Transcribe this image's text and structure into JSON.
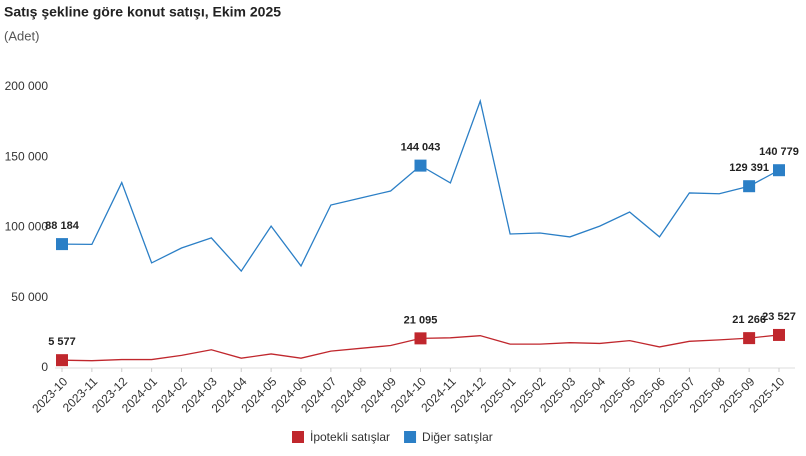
{
  "chart_data": {
    "type": "line",
    "title": "Satış şekline göre konut satışı, Ekim 2025",
    "subtitle": "(Adet)",
    "categories": [
      "2023-10",
      "2023-11",
      "2023-12",
      "2024-01",
      "2024-02",
      "2024-03",
      "2024-04",
      "2024-05",
      "2024-06",
      "2024-07",
      "2024-08",
      "2024-09",
      "2024-10",
      "2024-11",
      "2024-12",
      "2025-01",
      "2025-02",
      "2025-03",
      "2025-04",
      "2025-05",
      "2025-06",
      "2025-07",
      "2025-08",
      "2025-09",
      "2025-10"
    ],
    "series": [
      {
        "name": "İpotekli satışlar",
        "color": "#c0272d",
        "values": [
          5577,
          5200,
          6000,
          6000,
          9000,
          13000,
          7000,
          10000,
          7000,
          12000,
          14000,
          16000,
          21095,
          21500,
          23000,
          17000,
          17000,
          18000,
          17500,
          19500,
          15000,
          19000,
          20000,
          21266,
          23527
        ],
        "value_labels": [
          "5 577",
          null,
          null,
          null,
          null,
          null,
          null,
          null,
          null,
          null,
          null,
          null,
          "21 095",
          null,
          null,
          null,
          null,
          null,
          null,
          null,
          null,
          null,
          null,
          "21 266",
          "23 527"
        ]
      },
      {
        "name": "Diğer satışlar",
        "color": "#2b7fc6",
        "values": [
          88184,
          88000,
          132000,
          74800,
          85400,
          92600,
          69000,
          101000,
          72600,
          116000,
          121000,
          126000,
          144043,
          131700,
          190000,
          95400,
          96100,
          93300,
          101000,
          111000,
          93300,
          124600,
          124000,
          129391,
          140779
        ],
        "value_labels": [
          "88 184",
          null,
          null,
          null,
          null,
          null,
          null,
          null,
          null,
          null,
          null,
          null,
          "144 043",
          null,
          null,
          null,
          null,
          null,
          null,
          null,
          null,
          null,
          null,
          "129 391",
          "140 779"
        ]
      }
    ],
    "ylim": [
      0,
      200000
    ],
    "yticks": [
      0,
      {
        "value": 50000,
        "label": "50 000"
      },
      {
        "value": 100000,
        "label": "100 000"
      },
      {
        "value": 150000,
        "label": "150 000"
      },
      {
        "value": 200000,
        "label": "200 000"
      }
    ]
  }
}
